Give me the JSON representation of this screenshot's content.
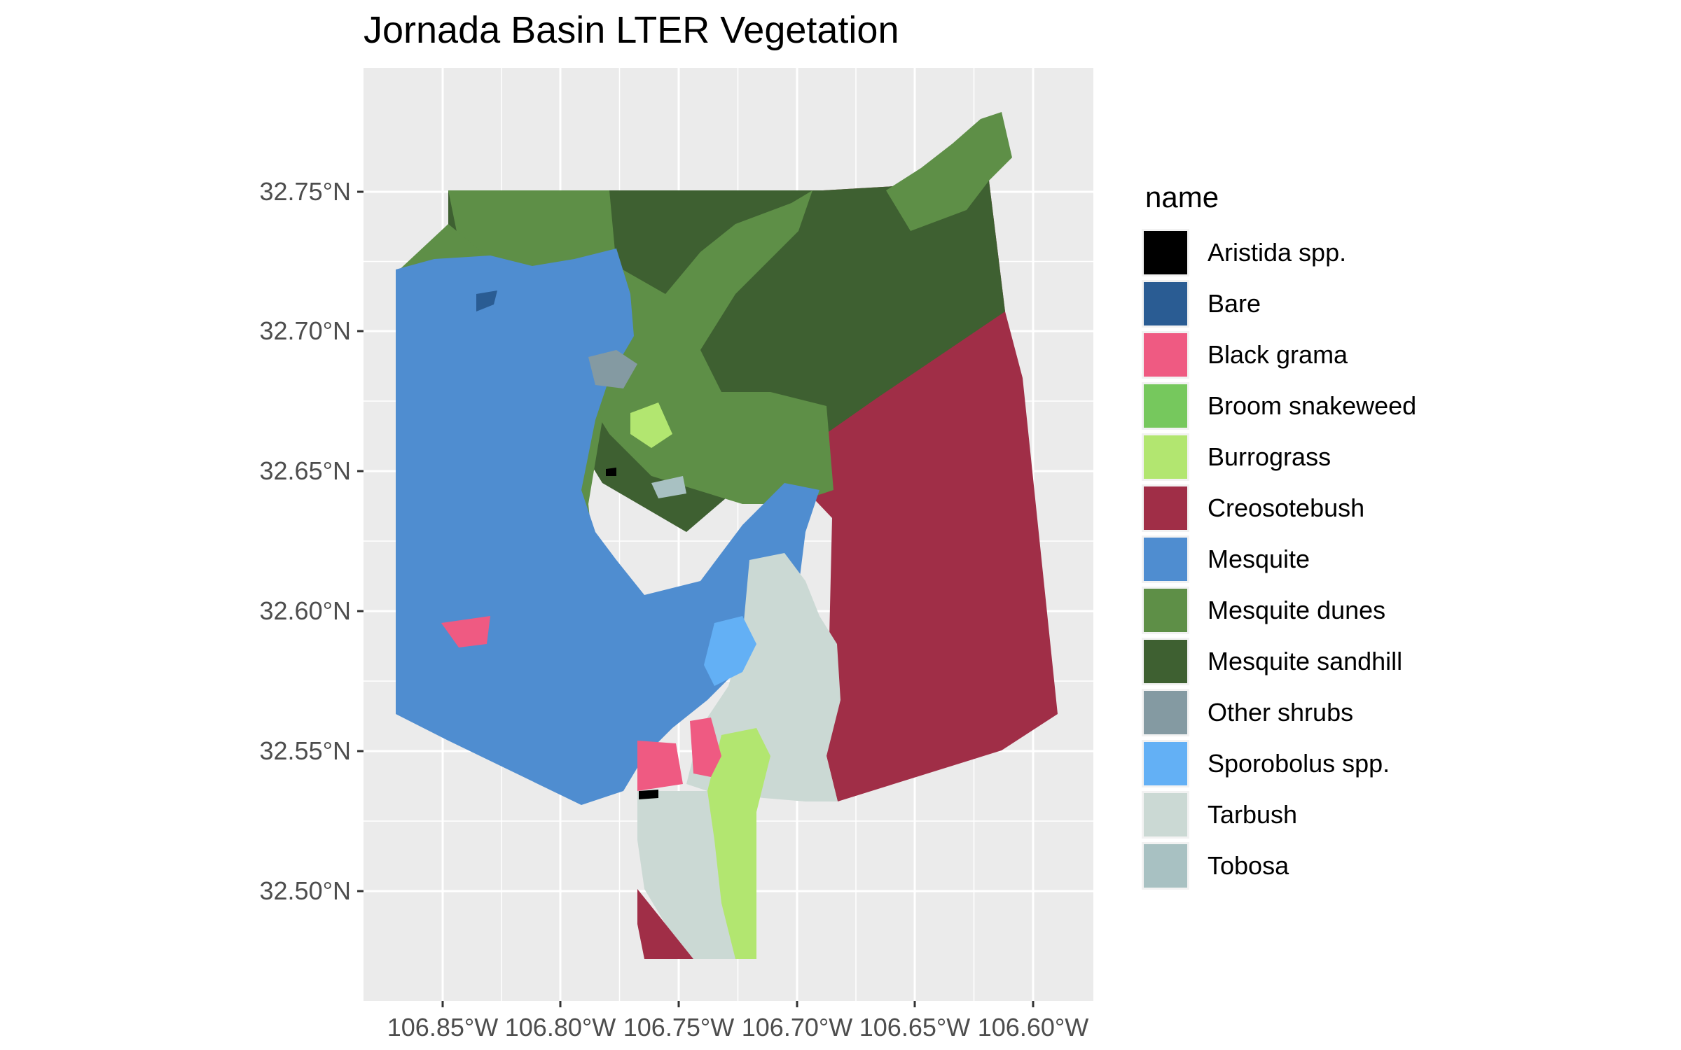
{
  "chart_data": {
    "type": "map",
    "title": "Jornada Basin LTER Vegetation",
    "x_ticks": [
      "106.85°W",
      "106.80°W",
      "106.75°W",
      "106.70°W",
      "106.65°W",
      "106.60°W"
    ],
    "y_ticks": [
      "32.75°N",
      "32.70°N",
      "32.65°N",
      "32.60°N",
      "32.55°N",
      "32.50°N"
    ],
    "panel_background": "#ebebeb",
    "legend_title": "name",
    "legend": [
      {
        "name": "Aristida spp.",
        "color": "#000000"
      },
      {
        "name": "Bare",
        "color": "#2a5c93"
      },
      {
        "name": "Black grama",
        "color": "#ef5a82"
      },
      {
        "name": "Broom snakeweed",
        "color": "#76c85d"
      },
      {
        "name": "Burrograss",
        "color": "#b2e670"
      },
      {
        "name": "Creosotebush",
        "color": "#a02e47"
      },
      {
        "name": "Mesquite",
        "color": "#4f8dd0"
      },
      {
        "name": "Mesquite dunes",
        "color": "#5e8f47"
      },
      {
        "name": "Mesquite sandhill",
        "color": "#3e6031"
      },
      {
        "name": "Other shrubs",
        "color": "#849aa2"
      },
      {
        "name": "Sporobolus spp.",
        "color": "#63b0f5"
      },
      {
        "name": "Tarbush",
        "color": "#cbd9d4"
      },
      {
        "name": "Tobosa",
        "color": "#a8c1c2"
      }
    ]
  }
}
